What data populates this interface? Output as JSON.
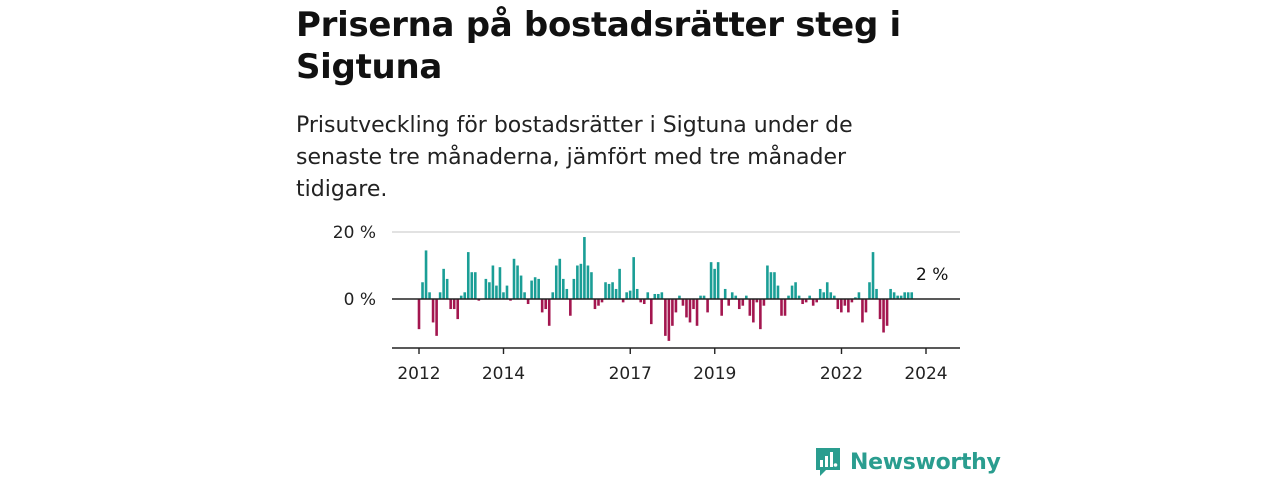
{
  "title": "Priserna på bostadsrätter steg i Sigtuna",
  "subtitle": "Prisutveckling för bostadsrätter i Sigtuna under de senaste tre månaderna, jämfört med tre månader tidigare.",
  "last_value_label": "2 %",
  "brand": {
    "name": "Newsworthy",
    "icon": "newsworthy-logo-icon"
  },
  "colors": {
    "positive": "#1a9e96",
    "negative": "#a3164f",
    "grid": "#d9d9d9",
    "axis": "#222222",
    "brand": "#2a9d8f"
  },
  "chart_data": {
    "type": "bar",
    "title": "",
    "xlabel": "",
    "ylabel": "",
    "ylim": [
      -15,
      22
    ],
    "yticks": [
      {
        "value": 20,
        "label": "20 %"
      },
      {
        "value": 0,
        "label": "0 %"
      }
    ],
    "xticks": [
      {
        "value": 2012.0,
        "label": "2012"
      },
      {
        "value": 2014.0,
        "label": "2014"
      },
      {
        "value": 2017.0,
        "label": "2017"
      },
      {
        "value": 2019.0,
        "label": "2019"
      },
      {
        "value": 2022.0,
        "label": "2022"
      },
      {
        "value": 2024.0,
        "label": "2024"
      }
    ],
    "x_start": 2012.0,
    "x_step": 0.0833,
    "grid": true,
    "values": [
      -9,
      5,
      14.5,
      2,
      -7,
      -11,
      2,
      9,
      6,
      -3,
      -3,
      -6,
      1,
      2,
      14,
      8,
      8,
      -0.5,
      0,
      6,
      5,
      10,
      4,
      9.5,
      2,
      4,
      -0.5,
      12,
      10,
      7,
      2,
      -1.5,
      5.5,
      6.5,
      6,
      -4,
      -3,
      -8,
      2,
      10,
      12,
      6,
      3,
      -5,
      6,
      10,
      10.5,
      18.5,
      10,
      8,
      -3,
      -2,
      -1,
      5,
      4.5,
      5,
      3,
      9,
      -1,
      2,
      2.5,
      12.5,
      3,
      -1,
      -1.5,
      2,
      -7.5,
      1.5,
      1.5,
      2,
      -11,
      -12.5,
      -8,
      -4,
      1,
      -2,
      -5.5,
      -7,
      -3,
      -8,
      1,
      1,
      -4,
      11,
      9,
      11,
      -5,
      3,
      -2,
      2,
      1,
      -3,
      -2,
      1,
      -5,
      -7,
      -1,
      -9,
      -2,
      10,
      8,
      8,
      4,
      -5,
      -5,
      1,
      4,
      5,
      1,
      -1.5,
      -1,
      1,
      -2,
      -1,
      3,
      2,
      5,
      2,
      1,
      -3,
      -4,
      -2,
      -4,
      -1,
      0.5,
      2,
      -7,
      -4,
      5,
      14,
      3,
      -6,
      -10,
      -8,
      3,
      2,
      1,
      1,
      2,
      2,
      2
    ]
  }
}
